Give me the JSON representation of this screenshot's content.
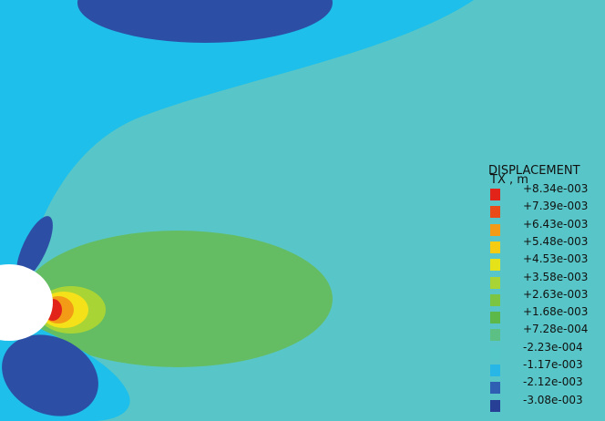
{
  "legend": {
    "title": "DISPLACEMENT",
    "subtitle": "TX , m",
    "levels": [
      {
        "label": "+8.34e-003",
        "color": "#e2231a"
      },
      {
        "label": "+7.39e-003",
        "color": "#ea4b17"
      },
      {
        "label": "+6.43e-003",
        "color": "#f39b16"
      },
      {
        "label": "+5.48e-003",
        "color": "#f5cc12"
      },
      {
        "label": "+4.53e-003",
        "color": "#e6e21a"
      },
      {
        "label": "+3.58e-003",
        "color": "#a9d436"
      },
      {
        "label": "+2.63e-003",
        "color": "#7cc543"
      },
      {
        "label": "+1.68e-003",
        "color": "#5db84a"
      },
      {
        "label": "+7.28e-004",
        "color": "#5cbf84"
      },
      {
        "label": "-2.23e-004",
        "color": "#56c7c9"
      },
      {
        "label": "-1.17e-003",
        "color": "#27b6e6"
      },
      {
        "label": "-2.12e-003",
        "color": "#2e5fb2"
      },
      {
        "label": "-3.08e-003",
        "color": "#283f96"
      }
    ]
  },
  "field_colors": {
    "background": "#58c6c8",
    "negative_band": "#1ebfea",
    "strong_negative": "#2c4fa5",
    "positive_band": "#64bd62",
    "peak": "#e2231a",
    "hole": "#ffffff"
  }
}
